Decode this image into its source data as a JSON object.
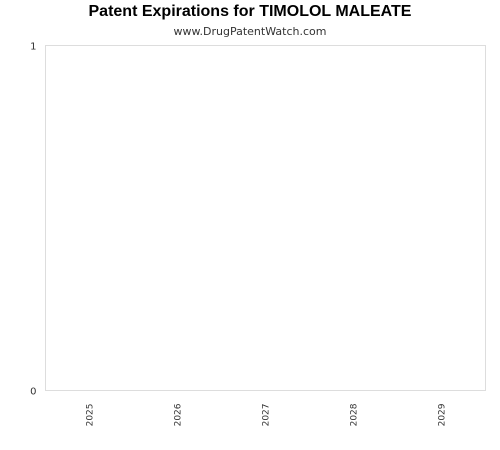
{
  "chart_data": {
    "type": "bar",
    "title": "Patent Expirations for TIMOLOL MALEATE",
    "subtitle": "www.DrugPatentWatch.com",
    "xlabel": "",
    "ylabel": "",
    "categories": [
      "2025",
      "2026",
      "2027",
      "2028",
      "2029"
    ],
    "values": [
      0,
      0,
      0,
      0,
      0
    ],
    "yticks": [
      "0",
      "1"
    ],
    "ylim": [
      0,
      1
    ],
    "grid": false,
    "legend": "none",
    "colors": {
      "frame": "#dddddd",
      "tick_text": "#333333"
    }
  }
}
